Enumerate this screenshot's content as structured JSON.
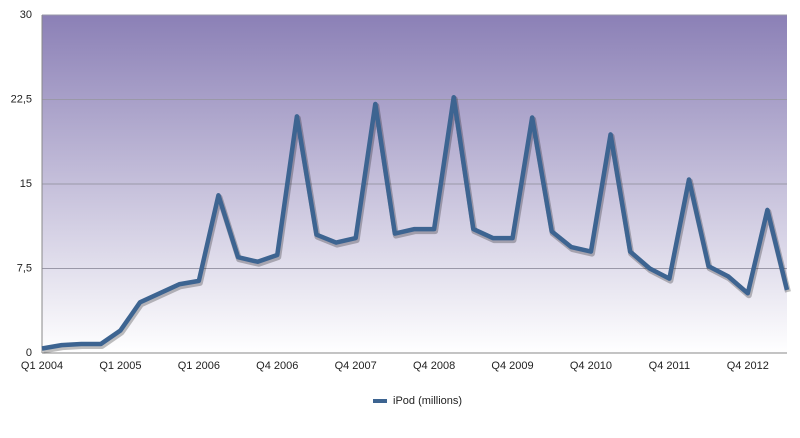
{
  "chart_data": {
    "type": "line",
    "categories": [
      "Q1 2004",
      null,
      null,
      null,
      "Q1 2005",
      null,
      null,
      null,
      "Q1 2006",
      null,
      null,
      null,
      "Q4 2006",
      null,
      null,
      null,
      "Q4 2007",
      null,
      null,
      null,
      "Q4 2008",
      null,
      null,
      null,
      "Q4 2009",
      null,
      null,
      null,
      "Q4 2010",
      null,
      null,
      null,
      "Q4 2011",
      null,
      null,
      null,
      "Q4 2012",
      null,
      null
    ],
    "series": [
      {
        "name": "iPod (millions)",
        "color": "#3d6491",
        "values": [
          0.4,
          0.7,
          0.8,
          0.8,
          2.0,
          4.5,
          5.3,
          6.1,
          6.4,
          14.0,
          8.5,
          8.1,
          8.7,
          21.0,
          10.5,
          9.8,
          10.2,
          22.1,
          10.6,
          11.0,
          11.0,
          22.7,
          11.0,
          10.2,
          10.2,
          20.9,
          10.8,
          9.4,
          9.0,
          19.4,
          9.0,
          7.5,
          6.6,
          15.4,
          7.7,
          6.8,
          5.3,
          12.7,
          5.6
        ]
      }
    ],
    "ylim": [
      0,
      30
    ],
    "yticks": [
      0,
      {
        "value": 7.5,
        "label": "7,5"
      },
      15,
      {
        "value": 22.5,
        "label": "22,5"
      },
      30
    ],
    "grid": true,
    "legend": "bottom"
  }
}
